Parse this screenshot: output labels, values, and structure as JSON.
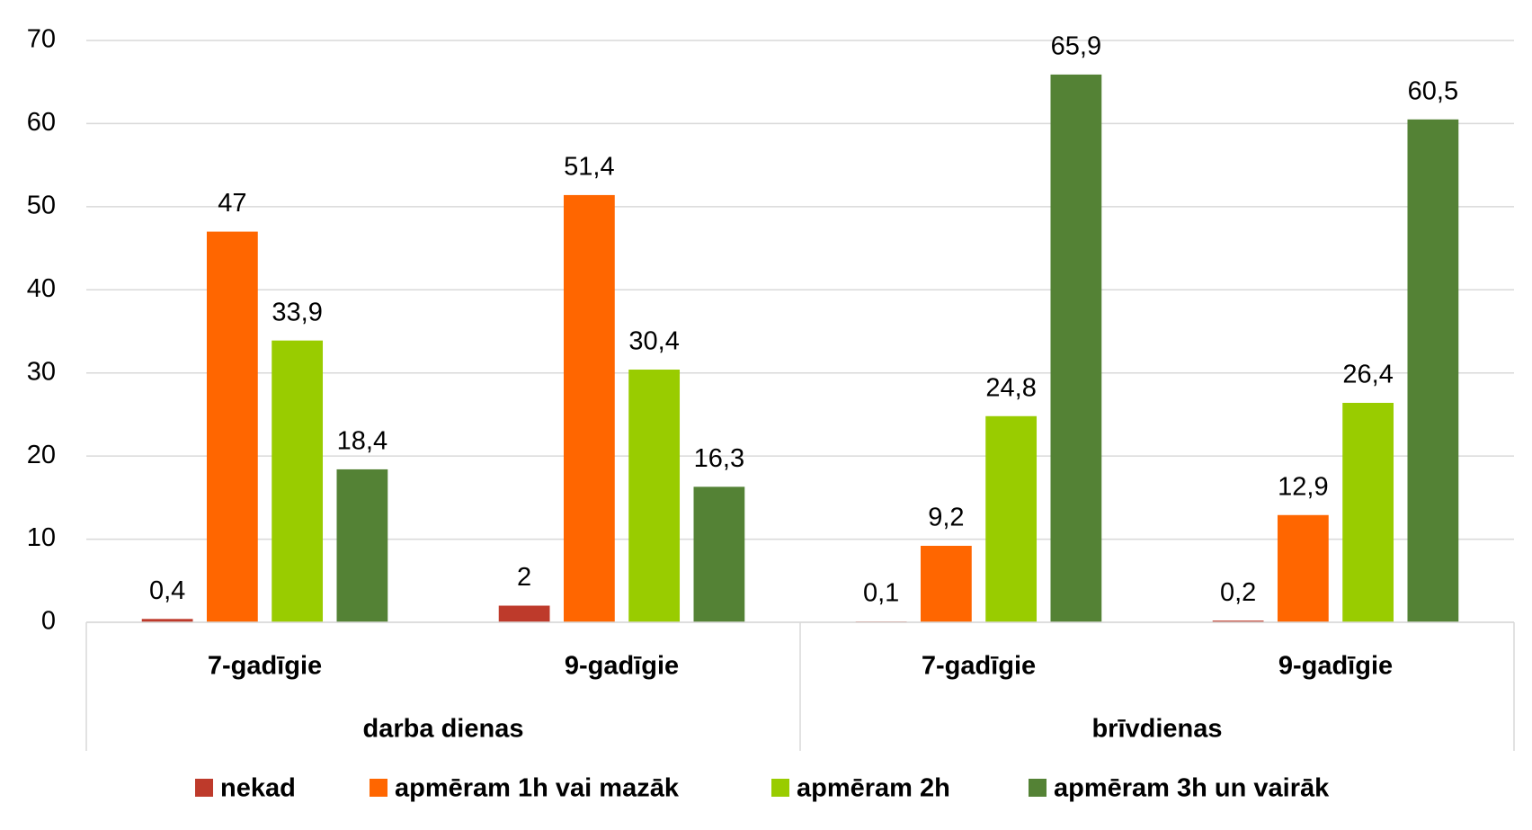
{
  "chart_data": {
    "type": "bar",
    "categories": [
      "7-gadīgie",
      "9-gadīgie",
      "7-gadīgie",
      "9-gadīgie"
    ],
    "category_groups": [
      "darba dienas",
      "brīvdienas"
    ],
    "series": [
      {
        "name": "nekad",
        "color": "#be3a2b",
        "values": [
          0.4,
          2,
          0.1,
          0.2
        ],
        "value_labels": [
          "0,4",
          "2",
          "0,1",
          "0,2"
        ]
      },
      {
        "name": "apmēram 1h vai mazāk",
        "color": "#ff6600",
        "values": [
          47,
          51.4,
          9.2,
          12.9
        ],
        "value_labels": [
          "47",
          "51,4",
          "9,2",
          "12,9"
        ]
      },
      {
        "name": "apmēram 2h",
        "color": "#99cc00",
        "values": [
          33.9,
          30.4,
          24.8,
          26.4
        ],
        "value_labels": [
          "33,9",
          "30,4",
          "24,8",
          "26,4"
        ]
      },
      {
        "name": "apmēram 3h un vairāk",
        "color": "#548235",
        "values": [
          18.4,
          16.3,
          65.9,
          60.5
        ],
        "value_labels": [
          "18,4",
          "16,3",
          "65,9",
          "60,5"
        ]
      }
    ],
    "ylim": [
      0,
      70
    ],
    "yticks": [
      0,
      10,
      20,
      30,
      40,
      50,
      60,
      70
    ],
    "grid": true,
    "legend": "bottom"
  }
}
